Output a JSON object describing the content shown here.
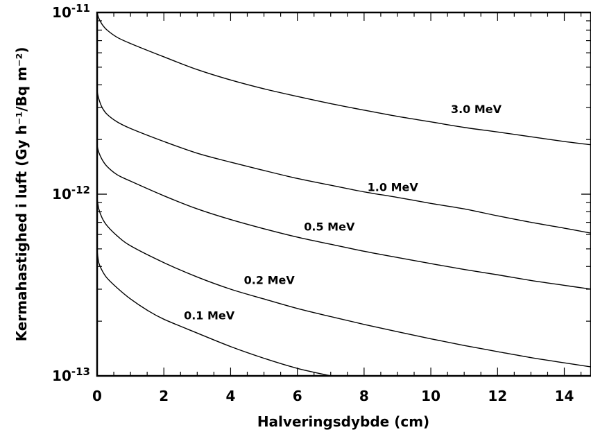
{
  "chart_data": {
    "type": "line",
    "title": "",
    "xlabel": "Halveringsdybde (cm)",
    "ylabel": "Kermahastighed i luft (Gy h⁻¹/Bq m⁻²)",
    "xlim": [
      0,
      14.8
    ],
    "ylim": [
      1e-13,
      1e-11
    ],
    "yscale": "log",
    "grid": false,
    "x_ticks": [
      "0",
      "2",
      "4",
      "6",
      "8",
      "10",
      "12",
      "14"
    ],
    "y_ticks": [
      {
        "value": 1e-11,
        "base": "10",
        "exp": "-11"
      },
      {
        "value": 1e-12,
        "base": "10",
        "exp": "-12"
      },
      {
        "value": 1e-13,
        "base": "10",
        "exp": "-13"
      }
    ],
    "series": [
      {
        "name": "3.0 MeV",
        "x": [
          0,
          0.05,
          0.15,
          0.3,
          0.6,
          1,
          2,
          3,
          4,
          5,
          6,
          7,
          8,
          9,
          10,
          11,
          12,
          13,
          14,
          14.8
        ],
        "y": [
          1e-11,
          9.3e-12,
          8.6e-12,
          8e-12,
          7.3e-12,
          6.75e-12,
          5.7e-12,
          4.85e-12,
          4.25e-12,
          3.8e-12,
          3.45e-12,
          3.15e-12,
          2.9e-12,
          2.68e-12,
          2.5e-12,
          2.33e-12,
          2.2e-12,
          2.07e-12,
          1.95e-12,
          1.87e-12
        ]
      },
      {
        "name": "1.0 MeV",
        "x": [
          0,
          0.05,
          0.15,
          0.3,
          0.6,
          1,
          2,
          3,
          4,
          5,
          6,
          7,
          8,
          9,
          10,
          11,
          12,
          13,
          14,
          14.8
        ],
        "y": [
          3.7e-12,
          3.35e-12,
          3e-12,
          2.75e-12,
          2.5e-12,
          2.3e-12,
          1.95e-12,
          1.68e-12,
          1.5e-12,
          1.35e-12,
          1.22e-12,
          1.12e-12,
          1.03e-12,
          9.6e-13,
          8.9e-13,
          8.3e-13,
          7.6e-13,
          7e-13,
          6.5e-13,
          6.1e-13
        ]
      },
      {
        "name": "0.5 MeV",
        "x": [
          0,
          0.05,
          0.15,
          0.3,
          0.6,
          1,
          2,
          3,
          4,
          5,
          6,
          7,
          8,
          9,
          10,
          11,
          12,
          13,
          14,
          14.8
        ],
        "y": [
          1.85e-12,
          1.7e-12,
          1.55e-12,
          1.42e-12,
          1.28e-12,
          1.18e-12,
          9.8e-13,
          8.3e-13,
          7.25e-13,
          6.45e-13,
          5.8e-13,
          5.3e-13,
          4.85e-13,
          4.48e-13,
          4.15e-13,
          3.85e-13,
          3.6e-13,
          3.35e-13,
          3.15e-13,
          3e-13
        ]
      },
      {
        "name": "0.2 MeV",
        "x": [
          0,
          0.05,
          0.15,
          0.3,
          0.6,
          1,
          2,
          3,
          4,
          5,
          6,
          7,
          8,
          9,
          10,
          11,
          12,
          13,
          14,
          14.8
        ],
        "y": [
          9.5e-13,
          8.3e-13,
          7.4e-13,
          6.7e-13,
          5.9e-13,
          5.2e-13,
          4.2e-13,
          3.5e-13,
          3e-13,
          2.65e-13,
          2.35e-13,
          2.12e-13,
          1.92e-13,
          1.75e-13,
          1.6e-13,
          1.47e-13,
          1.36e-13,
          1.26e-13,
          1.18e-13,
          1.12e-13
        ]
      },
      {
        "name": "0.1 MeV",
        "x": [
          0,
          0.05,
          0.15,
          0.3,
          0.6,
          1,
          1.5,
          2,
          3,
          4,
          5,
          6,
          7
        ],
        "y": [
          4.9e-13,
          4.2e-13,
          3.8e-13,
          3.45e-13,
          3.05e-13,
          2.65e-13,
          2.3e-13,
          2.05e-13,
          1.72e-13,
          1.45e-13,
          1.25e-13,
          1.1e-13,
          1e-13
        ]
      }
    ],
    "series_labels": [
      {
        "text": "3.0 MeV",
        "at_x": 10.6,
        "at_y": 2.8e-12
      },
      {
        "text": "1.0 MeV",
        "at_x": 8.1,
        "at_y": 1.04e-12
      },
      {
        "text": "0.5 MeV",
        "at_x": 6.2,
        "at_y": 6.3e-13
      },
      {
        "text": "0.2 MeV",
        "at_x": 4.4,
        "at_y": 3.2e-13
      },
      {
        "text": "0.1 MeV",
        "at_x": 2.6,
        "at_y": 2.05e-13
      }
    ]
  }
}
